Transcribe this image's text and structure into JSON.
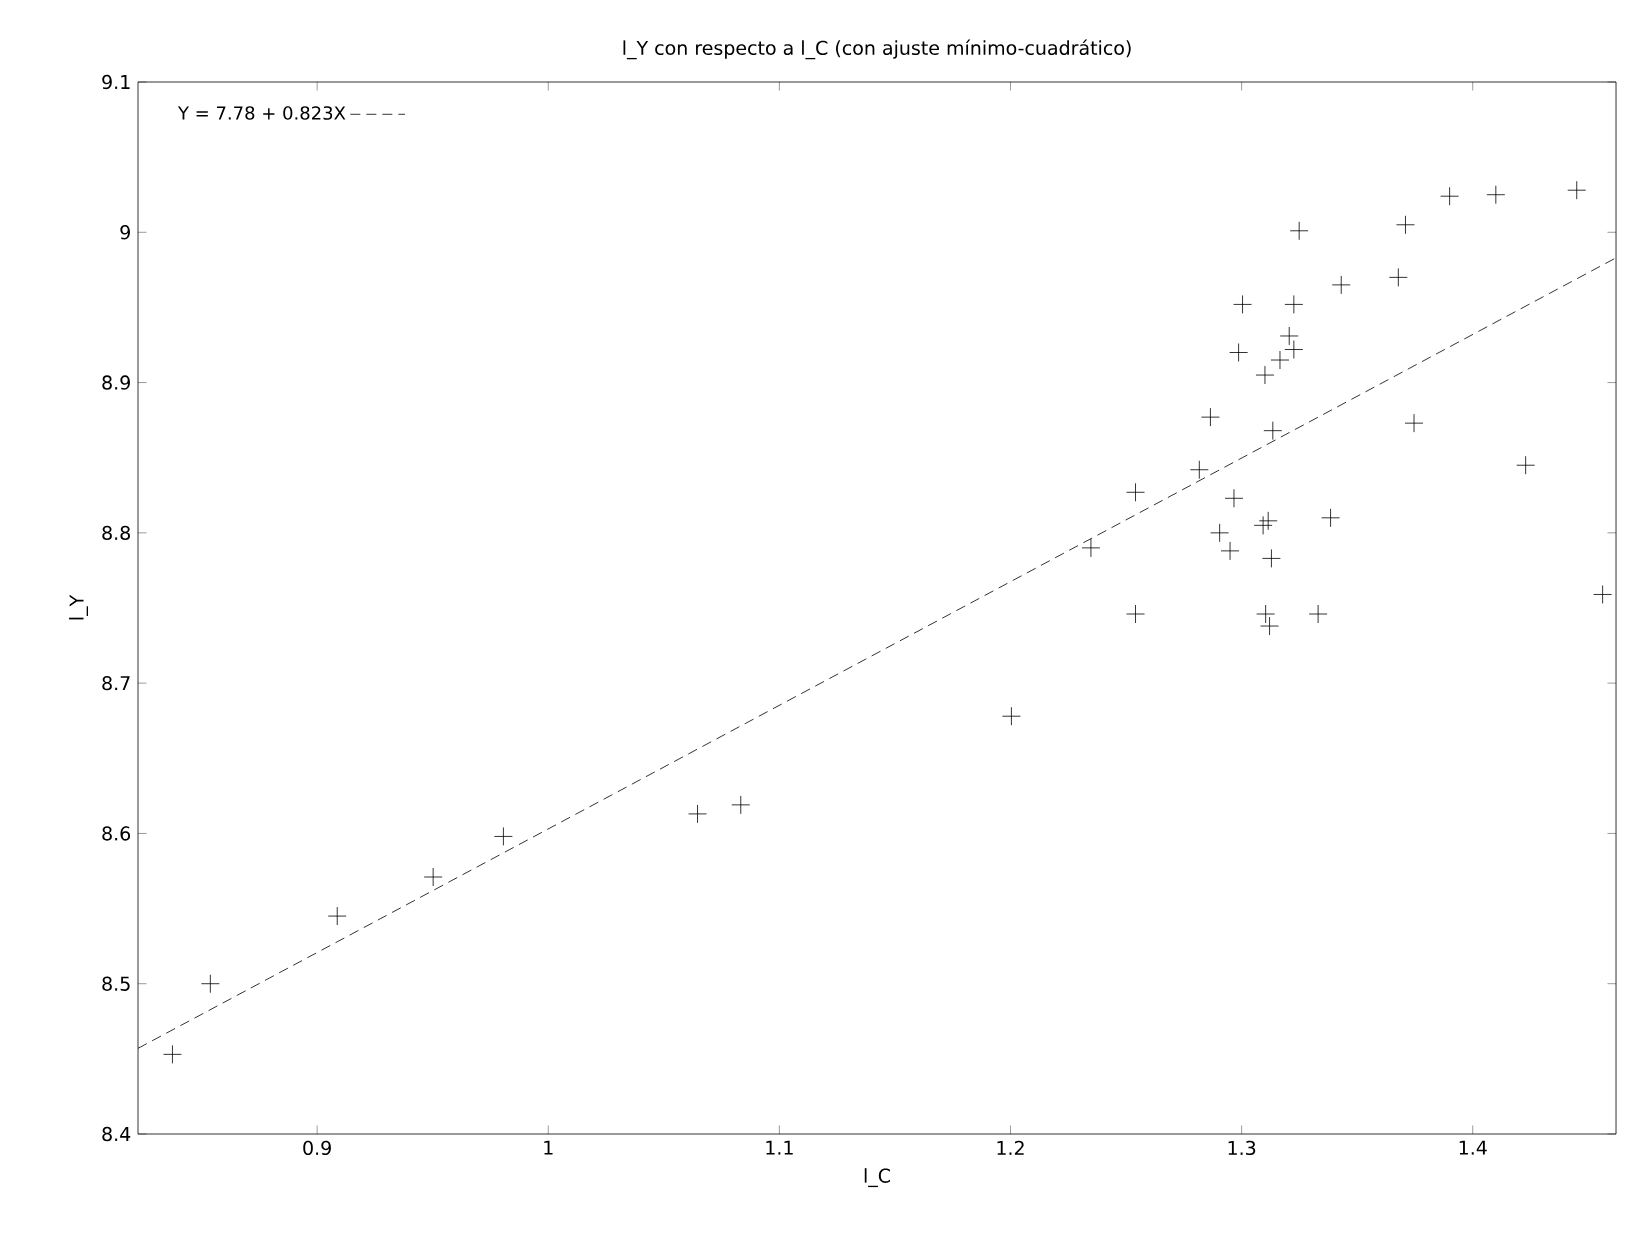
{
  "chart_data": {
    "type": "scatter",
    "title": "l_Y con respecto a l_C (con ajuste mínimo-cuadrático)",
    "xlabel": "l_C",
    "ylabel": "l_Y",
    "xlim": [
      0.8225,
      1.462
    ],
    "ylim": [
      8.4,
      9.1
    ],
    "xticks": [
      0.9,
      1,
      1.1,
      1.2,
      1.3,
      1.4
    ],
    "yticks": [
      8.4,
      8.5,
      8.6,
      8.7,
      8.8,
      8.9,
      9,
      9.1
    ],
    "grid": false,
    "legend": "top left",
    "series": [
      {
        "color": "#000000",
        "marker": "cross",
        "x": [
          0.8374,
          0.8538,
          0.9087,
          0.9502,
          0.9806,
          1.0646,
          1.0833,
          1.2004,
          1.2348,
          1.2541,
          1.2541,
          1.2817,
          1.2865,
          1.2967,
          1.2905,
          1.295,
          1.2987,
          1.3004,
          1.3101,
          1.3093,
          1.3115,
          1.3129,
          1.3104,
          1.3121,
          1.3135,
          1.3166,
          1.3206,
          1.3226,
          1.3226,
          1.3249,
          1.3331,
          1.3385,
          1.3431,
          1.3678,
          1.3709,
          1.3746,
          1.39,
          1.41,
          1.4229,
          1.445,
          1.4562
        ],
        "values": [
          8.453,
          8.5,
          8.545,
          8.571,
          8.598,
          8.613,
          8.619,
          8.678,
          8.79,
          8.827,
          8.746,
          8.842,
          8.877,
          8.823,
          8.8,
          8.788,
          8.92,
          8.952,
          8.905,
          8.805,
          8.808,
          8.783,
          8.746,
          8.738,
          8.868,
          8.915,
          8.931,
          8.922,
          8.952,
          9.001,
          8.746,
          8.81,
          8.965,
          8.97,
          9.005,
          8.873,
          9.024,
          9.025,
          8.845,
          9.028,
          8.759
        ]
      },
      {
        "type": "line",
        "name": "Y = 7.78 + 0.823X",
        "color": "#000000",
        "marker": "none",
        "line_style": "dashed",
        "x": [
          0.8225,
          1.462
        ],
        "values": [
          8.457,
          8.983
        ]
      }
    ]
  }
}
